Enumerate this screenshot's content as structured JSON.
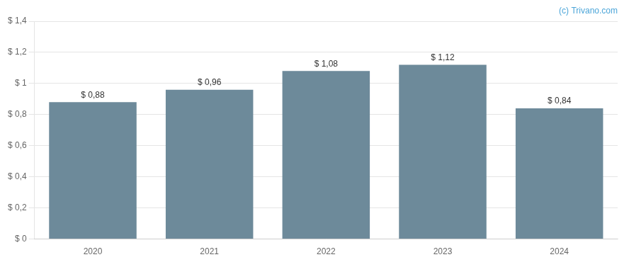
{
  "chart_data": {
    "type": "bar",
    "categories": [
      "2020",
      "2021",
      "2022",
      "2023",
      "2024"
    ],
    "values": [
      0.88,
      0.96,
      1.08,
      1.12,
      0.84
    ],
    "value_labels": [
      "$ 0,88",
      "$ 0,96",
      "$ 1,08",
      "$ 1,12",
      "$ 0,84"
    ],
    "data_labels": true,
    "color": "#6d8a9a",
    "ylim": [
      0,
      1.4
    ],
    "yticks": [
      {
        "value": 0,
        "label": "$ 0"
      },
      {
        "value": 0.2,
        "label": "$ 0,2"
      },
      {
        "value": 0.4,
        "label": "$ 0,4"
      },
      {
        "value": 0.6,
        "label": "$ 0,6"
      },
      {
        "value": 0.8,
        "label": "$ 0,8"
      },
      {
        "value": 1.0,
        "label": "$ 1"
      },
      {
        "value": 1.2,
        "label": "$ 1,2"
      },
      {
        "value": 1.4,
        "label": "$ 1,4"
      }
    ],
    "grid": true,
    "annotations": [
      {
        "text": "(c) Trivano.com",
        "color": "#4da6d9"
      }
    ]
  }
}
